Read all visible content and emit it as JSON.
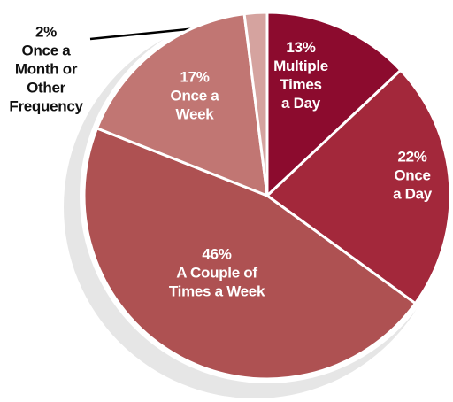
{
  "chart_data": {
    "type": "pie",
    "categories": [
      "Multiple\nTimes\na Day",
      "Once\na Day",
      "A Couple of\nTimes a Week",
      "Once a\nWeek",
      "Once a\nMonth or\nOther\nFrequency"
    ],
    "values": [
      13,
      22,
      46,
      17,
      2
    ],
    "value_labels": [
      "13%",
      "22%",
      "46%",
      "17%",
      "2%"
    ],
    "colors": [
      "#8c0b2e",
      "#a3283b",
      "#ae5152",
      "#c17673",
      "#d5a39f"
    ]
  }
}
